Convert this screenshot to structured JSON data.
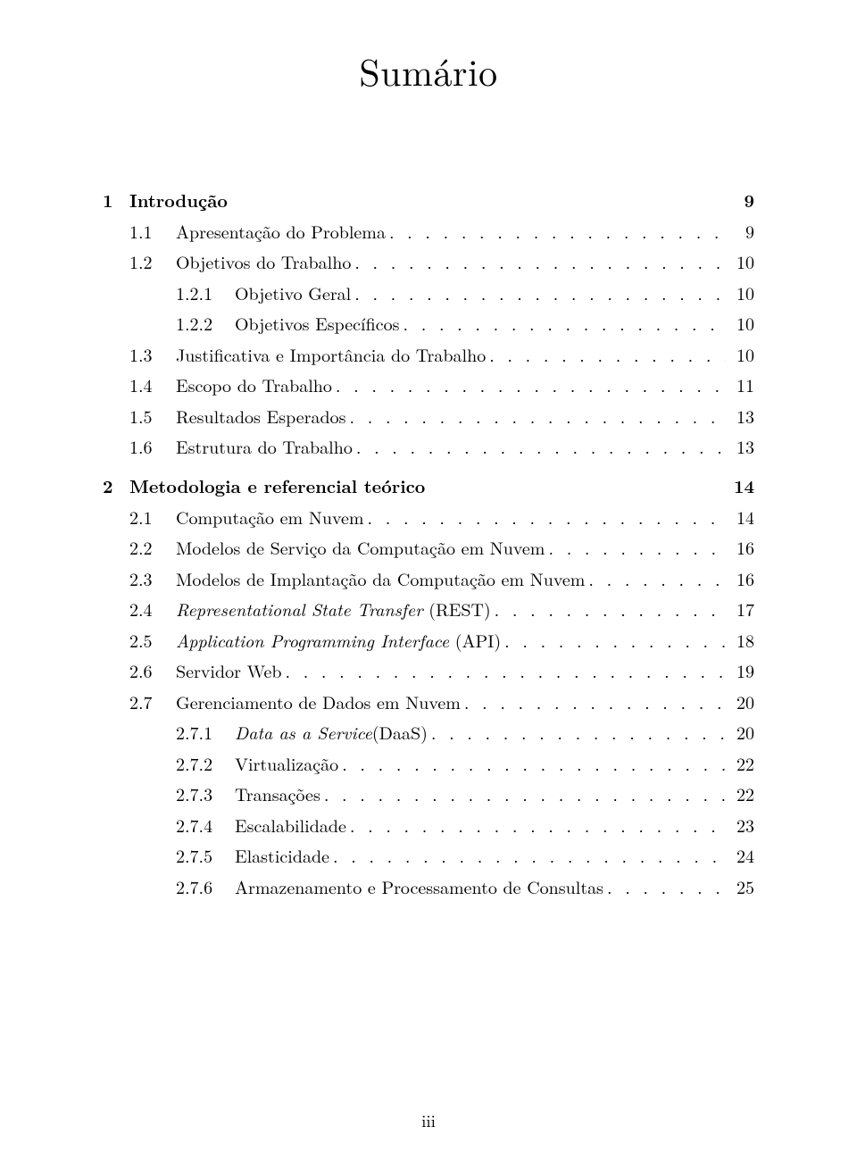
{
  "title": "Sumário",
  "footer": "iii",
  "entries": [
    {
      "level": "chapter",
      "number": "1",
      "label": "Introdução",
      "page": "9"
    },
    {
      "level": "section",
      "number": "1.1",
      "label": "Apresentação do Problema",
      "page": "9"
    },
    {
      "level": "section",
      "number": "1.2",
      "label": "Objetivos do Trabalho",
      "page": "10"
    },
    {
      "level": "subsection",
      "number": "1.2.1",
      "label": "Objetivo Geral",
      "page": "10"
    },
    {
      "level": "subsection",
      "number": "1.2.2",
      "label": "Objetivos Específicos",
      "page": "10"
    },
    {
      "level": "section",
      "number": "1.3",
      "label": "Justificativa e Importância do Trabalho",
      "page": "10"
    },
    {
      "level": "section",
      "number": "1.4",
      "label": "Escopo do Trabalho",
      "page": "11"
    },
    {
      "level": "section",
      "number": "1.5",
      "label": "Resultados Esperados",
      "page": "13"
    },
    {
      "level": "section",
      "number": "1.6",
      "label": "Estrutura do Trabalho",
      "page": "13"
    },
    {
      "level": "chapter",
      "number": "2",
      "label": "Metodologia e referencial teórico",
      "page": "14"
    },
    {
      "level": "section",
      "number": "2.1",
      "label": "Computação em Nuvem",
      "page": "14"
    },
    {
      "level": "section",
      "number": "2.2",
      "label": "Modelos de Serviço da Computação em Nuvem",
      "page": "16"
    },
    {
      "level": "section",
      "number": "2.3",
      "label": "Modelos de Implantação da Computação em Nuvem",
      "page": "16"
    },
    {
      "level": "section",
      "number": "2.4",
      "label_html": "<span class=\"italic\">Representational State Transfer</span> (REST)",
      "page": "17"
    },
    {
      "level": "section",
      "number": "2.5",
      "label_html": "<span class=\"italic\">Application Programming Interface</span> (API)",
      "page": "18"
    },
    {
      "level": "section",
      "number": "2.6",
      "label": "Servidor Web",
      "page": "19"
    },
    {
      "level": "section",
      "number": "2.7",
      "label": "Gerenciamento de Dados em Nuvem",
      "page": "20"
    },
    {
      "level": "subsection",
      "number": "2.7.1",
      "label_html": "<span class=\"italic\">Data as a Service</span>(DaaS)",
      "page": "20"
    },
    {
      "level": "subsection",
      "number": "2.7.2",
      "label": "Virtualização",
      "page": "22"
    },
    {
      "level": "subsection",
      "number": "2.7.3",
      "label": "Transações",
      "page": "22"
    },
    {
      "level": "subsection",
      "number": "2.7.4",
      "label": "Escalabilidade",
      "page": "23"
    },
    {
      "level": "subsection",
      "number": "2.7.5",
      "label": "Elasticidade",
      "page": "24"
    },
    {
      "level": "subsection",
      "number": "2.7.6",
      "label": "Armazenamento e Processamento de Consultas",
      "page": "25"
    }
  ]
}
